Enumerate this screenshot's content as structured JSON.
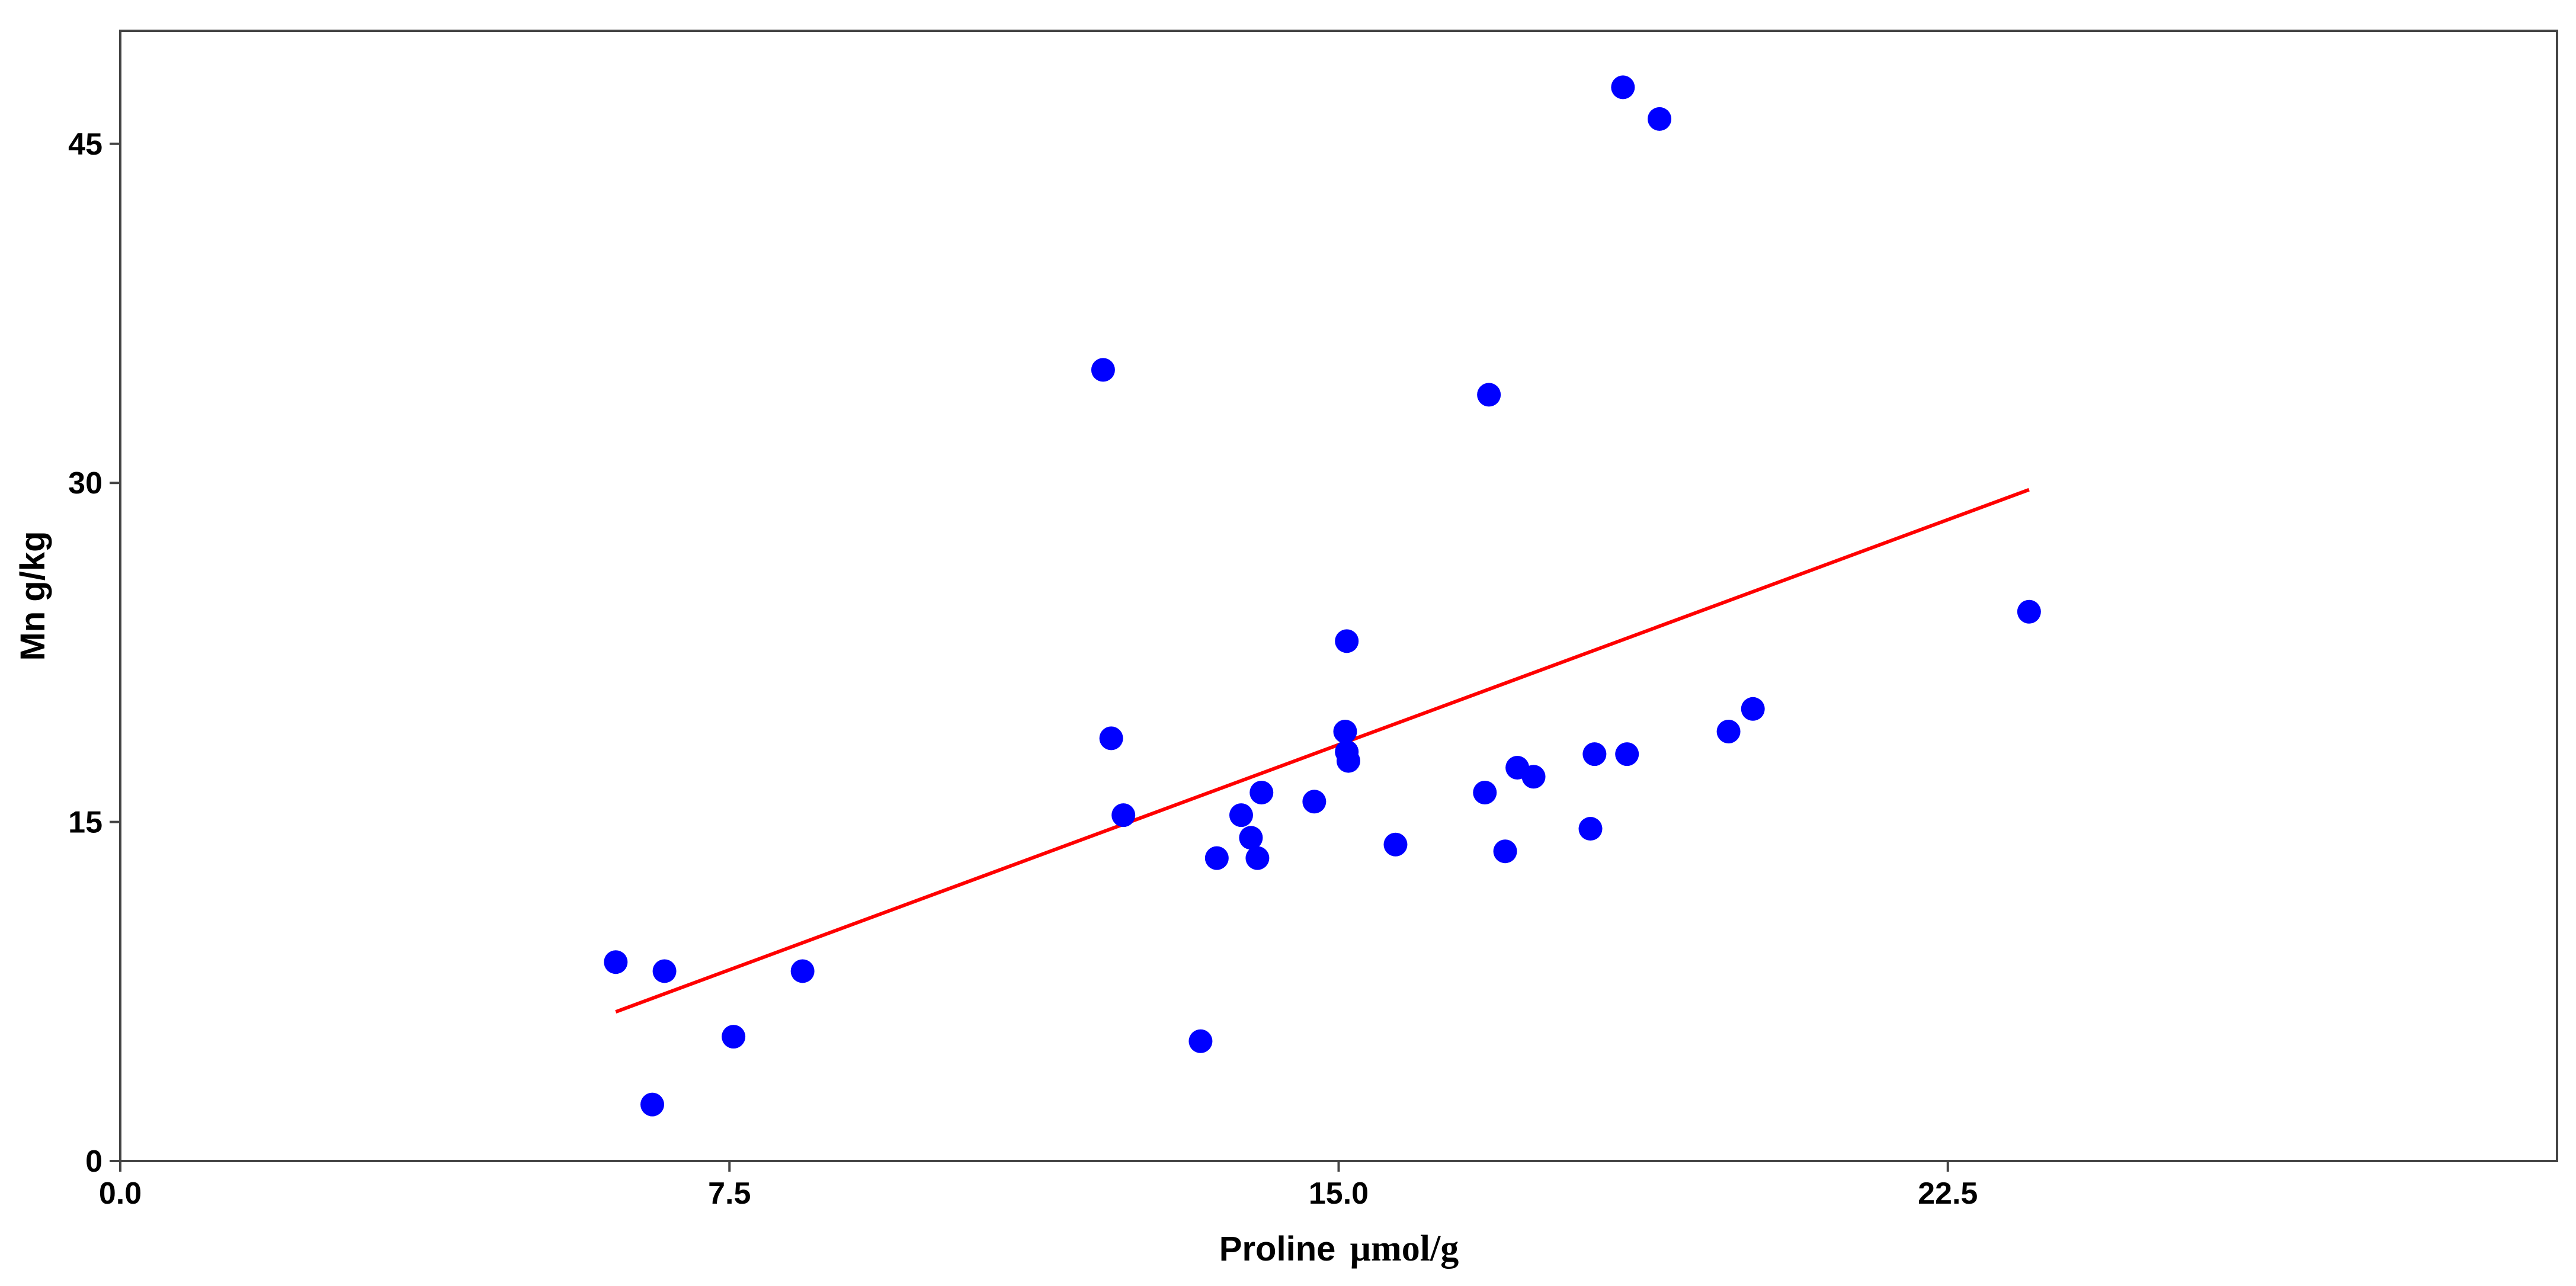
{
  "chart_data": {
    "type": "scatter",
    "title": "",
    "xlabel": {
      "main": "Proline",
      "unit": "µmol/g"
    },
    "ylabel": "Mn g/kg",
    "xlim": [
      0,
      30
    ],
    "ylim": [
      0,
      50
    ],
    "xticks": [
      "0.0",
      "7.5",
      "15.0",
      "22.5"
    ],
    "yticks": [
      "0",
      "15",
      "30",
      "45"
    ],
    "xtick_values": [
      0,
      7.5,
      15,
      22.5
    ],
    "ytick_values": [
      0,
      15,
      30,
      45
    ],
    "grid": false,
    "point_color": "#0000ff",
    "line_color": "#ff0000",
    "points": [
      {
        "x": 6.1,
        "y": 8.8
      },
      {
        "x": 6.7,
        "y": 8.4
      },
      {
        "x": 6.55,
        "y": 2.5
      },
      {
        "x": 7.55,
        "y": 5.5
      },
      {
        "x": 8.4,
        "y": 8.4
      },
      {
        "x": 12.1,
        "y": 35.0
      },
      {
        "x": 12.2,
        "y": 18.7
      },
      {
        "x": 12.35,
        "y": 15.3
      },
      {
        "x": 13.3,
        "y": 5.3
      },
      {
        "x": 13.5,
        "y": 13.4
      },
      {
        "x": 13.8,
        "y": 15.3
      },
      {
        "x": 13.92,
        "y": 14.3
      },
      {
        "x": 14.0,
        "y": 13.4
      },
      {
        "x": 14.05,
        "y": 16.3
      },
      {
        "x": 14.7,
        "y": 15.9
      },
      {
        "x": 15.1,
        "y": 23.0
      },
      {
        "x": 15.08,
        "y": 19.0
      },
      {
        "x": 15.1,
        "y": 18.1
      },
      {
        "x": 15.12,
        "y": 17.7
      },
      {
        "x": 15.7,
        "y": 14.0
      },
      {
        "x": 16.8,
        "y": 16.3
      },
      {
        "x": 16.85,
        "y": 33.9
      },
      {
        "x": 17.05,
        "y": 13.7
      },
      {
        "x": 17.2,
        "y": 17.4
      },
      {
        "x": 17.4,
        "y": 17.0
      },
      {
        "x": 18.1,
        "y": 14.7
      },
      {
        "x": 18.15,
        "y": 18.0
      },
      {
        "x": 18.5,
        "y": 47.5
      },
      {
        "x": 18.55,
        "y": 18.0
      },
      {
        "x": 18.95,
        "y": 46.1
      },
      {
        "x": 19.8,
        "y": 19.0
      },
      {
        "x": 20.1,
        "y": 20.0
      },
      {
        "x": 23.5,
        "y": 24.3
      }
    ],
    "fit_line": {
      "x": [
        6.1,
        23.5
      ],
      "y": [
        6.6,
        29.7
      ]
    }
  }
}
